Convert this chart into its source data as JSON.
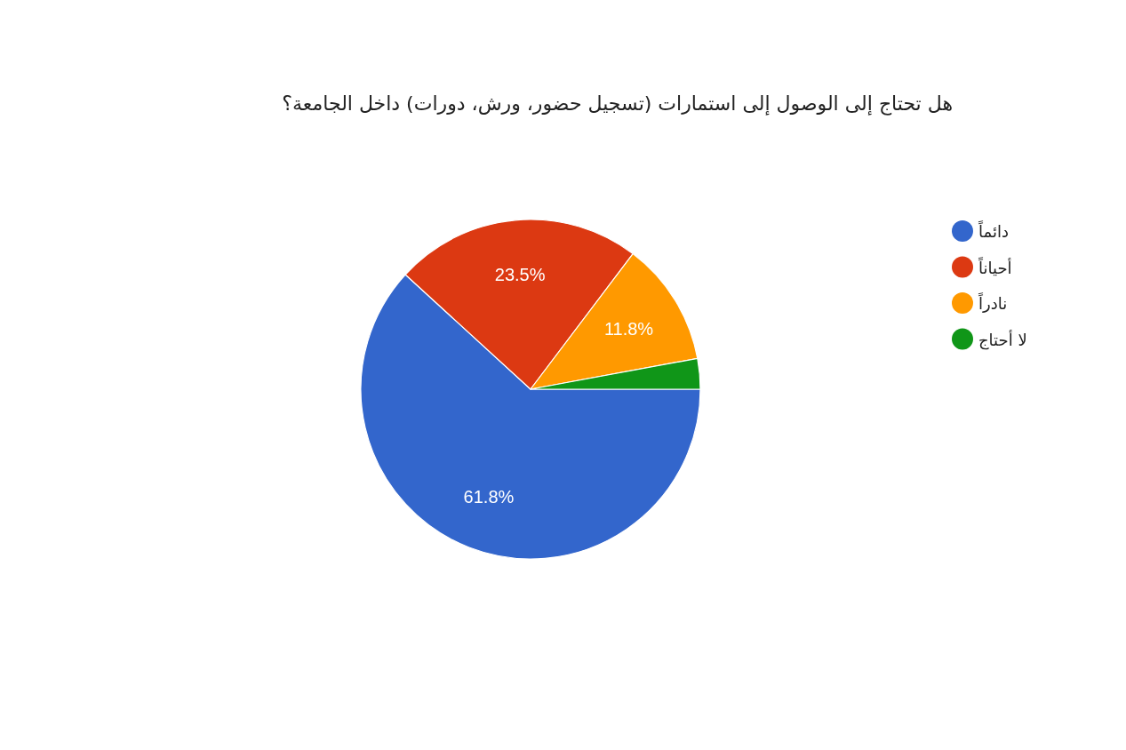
{
  "chart_data": {
    "type": "pie",
    "title": "هل تحتاج إلى الوصول إلى استمارات (تسجيل حضور، ورش، دورات) داخل الجامعة؟",
    "categories": [
      "دائماً",
      "أحياناً",
      "نادراً",
      "لا أحتاج"
    ],
    "values": [
      61.8,
      23.5,
      11.8,
      2.9
    ],
    "value_labels": [
      "61.8%",
      "23.5%",
      "11.8%",
      null
    ],
    "colors": [
      "#3366cc",
      "#dc3912",
      "#ff9900",
      "#109618"
    ],
    "legend": "right"
  }
}
